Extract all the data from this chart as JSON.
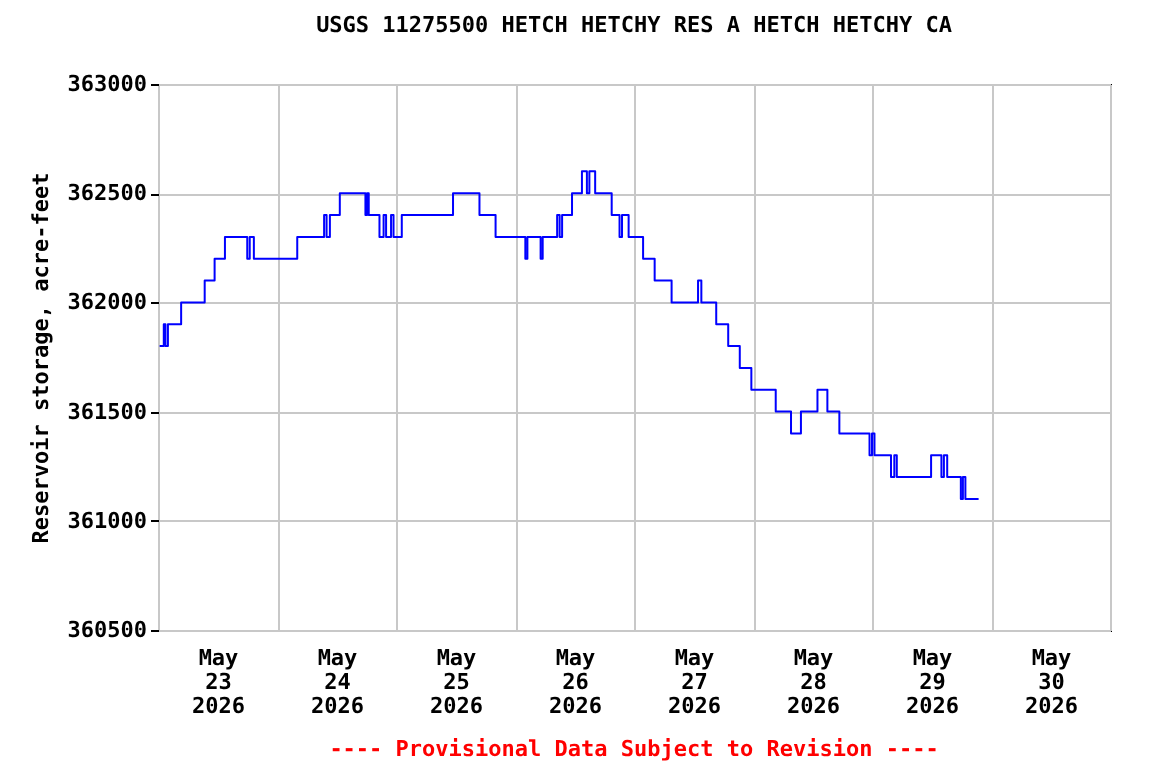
{
  "chart_data": {
    "type": "step",
    "title": "USGS 11275500 HETCH HETCHY RES A HETCH HETCHY CA",
    "ylabel": "Reservoir storage, acre-feet",
    "annotations": [
      "---- Provisional Data Subject to Revision ----"
    ],
    "x": [
      "2026-05-23T00:20",
      "2026-05-23T01:10",
      "2026-05-23T01:30",
      "2026-05-23T02:00",
      "2026-05-23T04:40",
      "2026-05-23T09:25",
      "2026-05-23T11:25",
      "2026-05-23T13:30",
      "2026-05-23T18:00",
      "2026-05-23T18:30",
      "2026-05-23T19:20",
      "2026-05-24T04:05",
      "2026-05-24T09:30",
      "2026-05-24T10:00",
      "2026-05-24T10:40",
      "2026-05-24T12:40",
      "2026-05-24T17:50",
      "2026-05-24T18:10",
      "2026-05-24T18:30",
      "2026-05-24T20:40",
      "2026-05-24T21:30",
      "2026-05-24T22:00",
      "2026-05-24T23:00",
      "2026-05-24T23:30",
      "2026-05-25T01:10",
      "2026-05-25T11:30",
      "2026-05-25T16:50",
      "2026-05-25T20:05",
      "2026-05-26T02:05",
      "2026-05-26T02:30",
      "2026-05-26T05:10",
      "2026-05-26T05:35",
      "2026-05-26T08:30",
      "2026-05-26T09:00",
      "2026-05-26T09:30",
      "2026-05-26T11:30",
      "2026-05-26T13:30",
      "2026-05-26T14:30",
      "2026-05-26T15:00",
      "2026-05-26T16:10",
      "2026-05-26T19:30",
      "2026-05-26T21:05",
      "2026-05-26T21:35",
      "2026-05-26T22:55",
      "2026-05-27T01:50",
      "2026-05-27T04:10",
      "2026-05-27T07:35",
      "2026-05-27T12:55",
      "2026-05-27T13:35",
      "2026-05-27T16:35",
      "2026-05-27T19:00",
      "2026-05-27T21:20",
      "2026-05-27T23:40",
      "2026-05-28T04:35",
      "2026-05-28T07:40",
      "2026-05-28T09:40",
      "2026-05-28T13:00",
      "2026-05-28T15:00",
      "2026-05-28T17:25",
      "2026-05-28T23:30",
      "2026-05-29T00:00",
      "2026-05-29T00:30",
      "2026-05-29T03:50",
      "2026-05-29T04:30",
      "2026-05-29T05:00",
      "2026-05-29T11:55",
      "2026-05-29T14:00",
      "2026-05-29T14:30",
      "2026-05-29T15:10",
      "2026-05-29T17:55",
      "2026-05-29T18:20",
      "2026-05-29T18:50",
      "2026-05-29T21:30"
    ],
    "series": [
      {
        "color": "#0000ff",
        "values": [
          361800,
          361900,
          361800,
          361900,
          362000,
          362100,
          362200,
          362300,
          362200,
          362300,
          362200,
          362300,
          362400,
          362300,
          362400,
          362500,
          362400,
          362500,
          362400,
          362300,
          362400,
          362300,
          362400,
          362300,
          362400,
          362500,
          362400,
          362300,
          362200,
          362300,
          362200,
          362300,
          362400,
          362300,
          362400,
          362500,
          362600,
          362500,
          362600,
          362500,
          362400,
          362300,
          362400,
          362300,
          362200,
          362100,
          362000,
          362100,
          362000,
          361900,
          361800,
          361700,
          361600,
          361500,
          361400,
          361500,
          361600,
          361500,
          361400,
          361300,
          361400,
          361300,
          361200,
          361300,
          361200,
          361300,
          361200,
          361300,
          361200,
          361100,
          361200,
          361100,
          361100
        ]
      }
    ],
    "xlim": [
      "2026-05-23",
      "2026-05-31"
    ],
    "xticks": [
      {
        "value": "2026-05-23",
        "label": null
      },
      {
        "value": "2026-05-23T12:00",
        "label": "May\n23\n2026"
      },
      {
        "value": "2026-05-24",
        "label": null
      },
      {
        "value": "2026-05-24T12:00",
        "label": "May\n24\n2026"
      },
      {
        "value": "2026-05-25",
        "label": null
      },
      {
        "value": "2026-05-25T12:00",
        "label": "May\n25\n2026"
      },
      {
        "value": "2026-05-26",
        "label": null
      },
      {
        "value": "2026-05-26T12:00",
        "label": "May\n26\n2026"
      },
      {
        "value": "2026-05-27",
        "label": null
      },
      {
        "value": "2026-05-27T12:00",
        "label": "May\n27\n2026"
      },
      {
        "value": "2026-05-28",
        "label": null
      },
      {
        "value": "2026-05-28T12:00",
        "label": "May\n28\n2026"
      },
      {
        "value": "2026-05-29",
        "label": null
      },
      {
        "value": "2026-05-29T12:00",
        "label": "May\n29\n2026"
      },
      {
        "value": "2026-05-30",
        "label": null
      },
      {
        "value": "2026-05-30T12:00",
        "label": "May\n30\n2026"
      },
      {
        "value": "2026-05-31",
        "label": null
      }
    ],
    "ylim": [
      360500,
      363000
    ],
    "yticks": [
      360500,
      361000,
      361500,
      362000,
      362500,
      363000
    ],
    "grid": true,
    "marker": "none",
    "line_style": "solid"
  }
}
